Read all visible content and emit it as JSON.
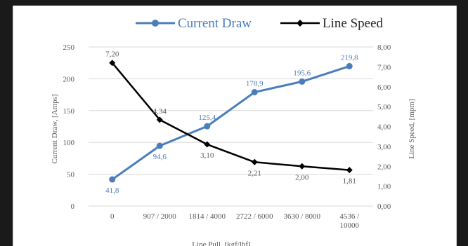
{
  "chart_data": {
    "type": "line",
    "categories": [
      "0",
      "907 / 2000",
      "1814 / 4000",
      "2722 / 6000",
      "3630 / 8000",
      "4536 / 10000"
    ],
    "category_lines": [
      [
        "0"
      ],
      [
        "907 / 2000"
      ],
      [
        "1814 / 4000"
      ],
      [
        "2722 / 6000"
      ],
      [
        "3630 / 8000"
      ],
      [
        "4536 /",
        "10000"
      ]
    ],
    "xlabel": "Line Pull, [kgf/lbf]",
    "ylabel_left": "Current Draw, [Amps]",
    "ylabel_right": "Line Speed, [mpm]",
    "ylim_left": [
      0,
      250
    ],
    "yticks_left": [
      "0",
      "50",
      "100",
      "150",
      "200",
      "250"
    ],
    "ylim_right": [
      0,
      8
    ],
    "yticks_right": [
      "0,00",
      "1,00",
      "2,00",
      "3,00",
      "4,00",
      "5,00",
      "6,00",
      "7,00",
      "8,00"
    ],
    "grid": true,
    "legend_position": "top",
    "series": [
      {
        "name": "Current Draw",
        "axis": "left",
        "color": "#4a7ebb",
        "marker": "circle",
        "values": [
          41.8,
          94.6,
          125.4,
          178.9,
          195.6,
          219.8
        ],
        "labels": [
          "41,8",
          "94,6",
          "125,4",
          "178,9",
          "195,6",
          "219,8"
        ],
        "label_side": [
          "below",
          "below",
          "above",
          "above",
          "above",
          "above"
        ]
      },
      {
        "name": "Line Speed",
        "axis": "right",
        "color": "#000000",
        "marker": "diamond",
        "values": [
          7.2,
          4.34,
          3.1,
          2.21,
          2.0,
          1.81
        ],
        "labels": [
          "7,20",
          "4,34",
          "3,10",
          "2,21",
          "2,00",
          "1,81"
        ],
        "label_side": [
          "above",
          "above",
          "below",
          "below",
          "below",
          "below"
        ]
      }
    ]
  }
}
